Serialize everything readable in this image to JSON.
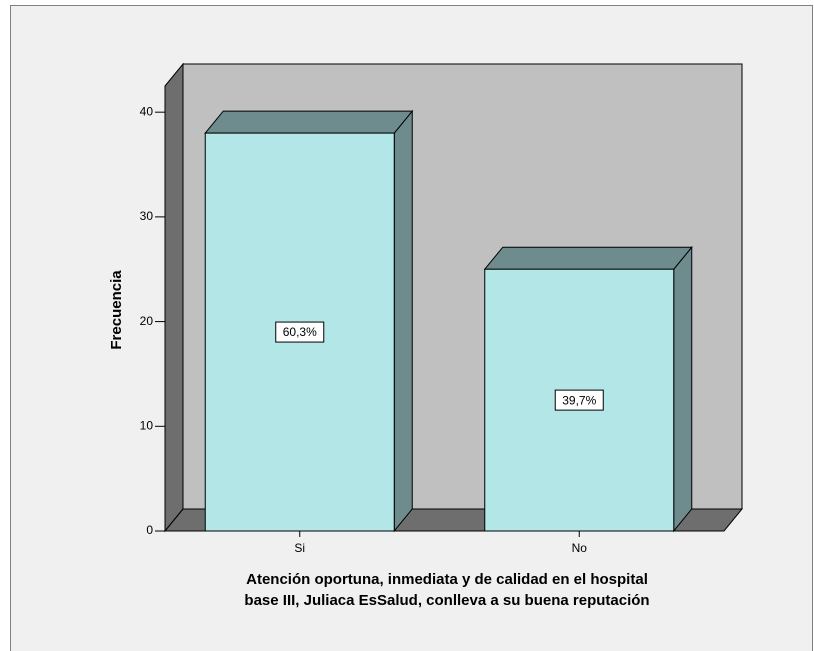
{
  "chart_data": {
    "type": "bar3d",
    "categories": [
      "Si",
      "No"
    ],
    "values": [
      38,
      25
    ],
    "bar_labels": [
      "60,3%",
      "39,7%"
    ],
    "y_label": "Frecuencia",
    "x_label": [
      "Atención oportuna, inmediata y de calidad en el hospital",
      "base III, Juliaca EsSalud, conlleva a su buena reputación"
    ],
    "color": "#b3e6e7",
    "ylim": [
      0,
      42.5
    ],
    "yticks": [
      0,
      10,
      20,
      30,
      40
    ]
  }
}
